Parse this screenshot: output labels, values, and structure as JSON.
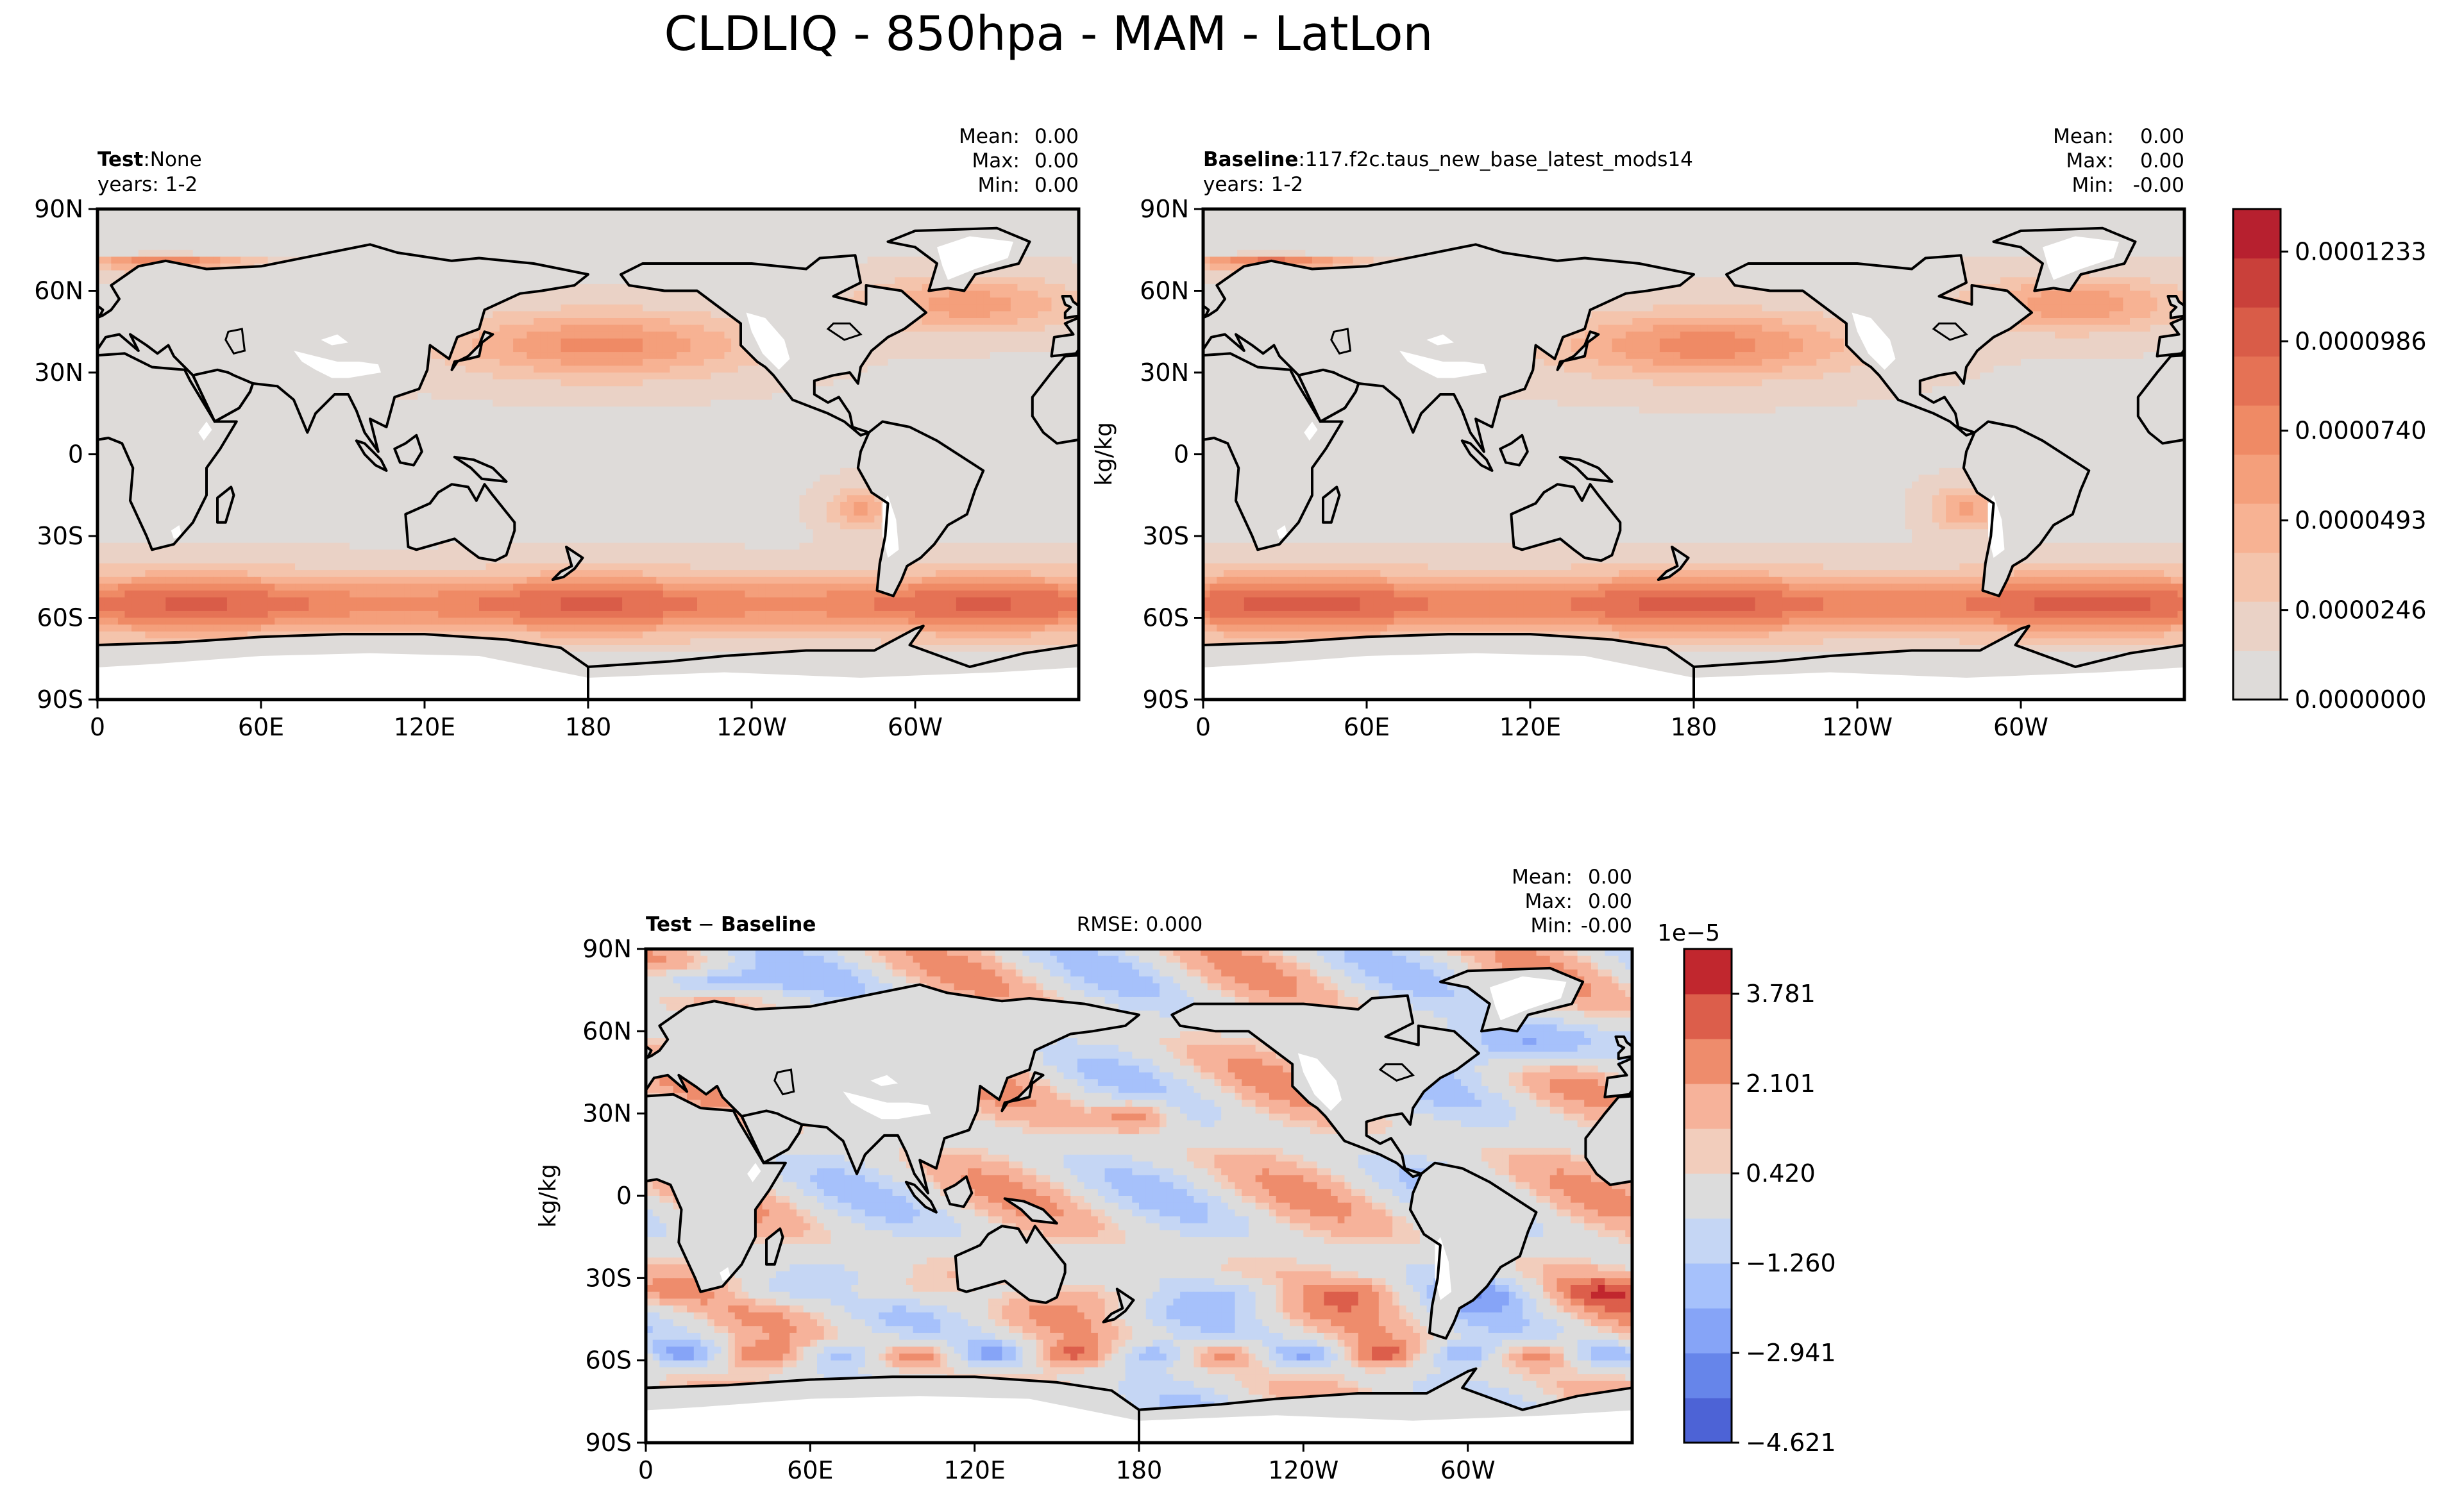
{
  "figure": {
    "title": "CLDLIQ - 850hpa - MAM - LatLon"
  },
  "colors": {
    "land_missing": "#ffffff",
    "coast": "#000000",
    "seq_cmap": [
      "#dedbd9",
      "#ead2c6",
      "#f4c4ac",
      "#f7b293",
      "#f49f7b",
      "#ef8a65",
      "#e57255",
      "#d95c48",
      "#c9403a",
      "#b7202f"
    ],
    "div_cmap": [
      "#4d63d6",
      "#6685ea",
      "#86a4f7",
      "#a6c1fb",
      "#c5d6f4",
      "#dcdcdc",
      "#f2cdbc",
      "#f6b29a",
      "#ee8c6c",
      "#dc5e4b",
      "#c1272e"
    ]
  },
  "chart_data": [
    {
      "id": "test",
      "type": "heatmap",
      "projection": "latlon",
      "label_bold": "Test",
      "label_sep": ":",
      "label_value": "None",
      "years": "years: 1-2",
      "stats": {
        "mean_label": "Mean:",
        "mean": "0.00",
        "max_label": "Max:",
        "max": "0.00",
        "min_label": "Min:",
        "min": "0.00"
      },
      "ylabel": "",
      "lat_ticks": [
        "90N",
        "60N",
        "30N",
        "0",
        "30S",
        "60S",
        "90S"
      ],
      "lon_ticks": [
        "0",
        "60E",
        "120E",
        "180",
        "120W",
        "60W"
      ],
      "lon_range": [
        0,
        360
      ],
      "lat_range": [
        -90,
        90
      ],
      "colormap": "seq",
      "field_range": [
        0,
        0.000135
      ]
    },
    {
      "id": "baseline",
      "type": "heatmap",
      "projection": "latlon",
      "label_bold": "Baseline",
      "label_sep": ":",
      "label_value": "117.f2c.taus_new_base_latest_mods14",
      "years": "years: 1-2",
      "stats": {
        "mean_label": "Mean:",
        "mean": "0.00",
        "max_label": "Max:",
        "max": "0.00",
        "min_label": "Min:",
        "min": "-0.00"
      },
      "ylabel": "kg/kg",
      "lat_ticks": [
        "90N",
        "60N",
        "30N",
        "0",
        "30S",
        "60S",
        "90S"
      ],
      "lon_ticks": [
        "0",
        "60E",
        "120E",
        "180",
        "120W",
        "60W"
      ],
      "lon_range": [
        0,
        360
      ],
      "lat_range": [
        -90,
        90
      ],
      "colormap": "seq",
      "field_range": [
        0,
        0.000135
      ],
      "colorbar": {
        "ticks": [
          "0.0001233",
          "0.0000986",
          "0.0000740",
          "0.0000493",
          "0.0000246",
          "0.0000000"
        ],
        "tick_values": [
          0.0001233,
          9.86e-05,
          7.4e-05,
          4.93e-05,
          2.46e-05,
          0.0
        ],
        "range": [
          0,
          0.000135
        ],
        "levels": 10
      }
    },
    {
      "id": "diff",
      "type": "heatmap",
      "projection": "latlon",
      "label_bold": "Test",
      "label_sep": " − ",
      "label_bold2": "Baseline",
      "rmse": "RMSE: 0.000",
      "stats": {
        "mean_label": "Mean:",
        "mean": "0.00",
        "max_label": "Max:",
        "max": "0.00",
        "min_label": "Min:",
        "min": "-0.00"
      },
      "ylabel": "kg/kg",
      "lat_ticks": [
        "90N",
        "60N",
        "30N",
        "0",
        "30S",
        "60S",
        "90S"
      ],
      "lon_ticks": [
        "0",
        "60E",
        "120E",
        "180",
        "120W",
        "60W"
      ],
      "lon_range": [
        0,
        360
      ],
      "lat_range": [
        -90,
        90
      ],
      "colormap": "div",
      "field_range": [
        -5.46,
        4.62
      ],
      "colorbar": {
        "exponent": "1e−5",
        "ticks": [
          "3.781",
          "2.101",
          "0.420",
          "−1.260",
          "−2.941",
          "−4.621"
        ],
        "tick_values": [
          3.781,
          2.101,
          0.42,
          -1.26,
          -2.941,
          -4.621
        ],
        "range": [
          -4.621,
          4.62
        ],
        "levels": 11
      }
    }
  ]
}
